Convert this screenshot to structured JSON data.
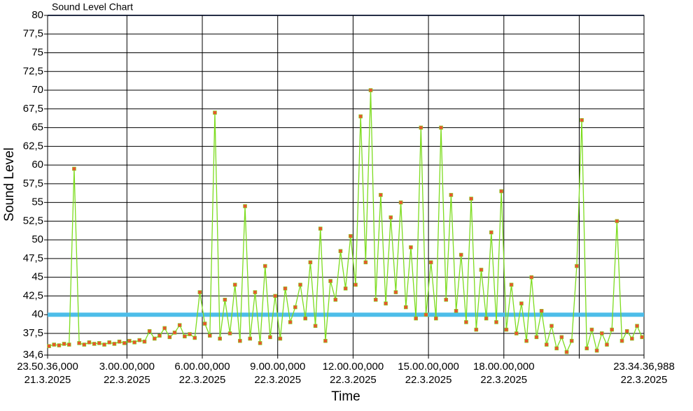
{
  "chart_data": {
    "type": "line",
    "title": "Sound Level Chart",
    "x_label": "Time",
    "y_label": "Sound Level",
    "x": [
      23.9,
      24.1,
      24.3,
      24.5,
      24.7,
      24.9,
      25.1,
      25.3,
      25.5,
      25.7,
      25.9,
      26.1,
      26.3,
      26.5,
      26.7,
      26.9,
      27.1,
      27.3,
      27.5,
      27.7,
      27.9,
      28.1,
      28.3,
      28.5,
      28.7,
      28.9,
      29.1,
      29.3,
      29.5,
      29.7,
      29.9,
      30.1,
      30.3,
      30.5,
      30.7,
      30.9,
      31.1,
      31.3,
      31.5,
      31.7,
      31.9,
      32.1,
      32.3,
      32.5,
      32.7,
      32.9,
      33.1,
      33.3,
      33.5,
      33.7,
      33.9,
      34.1,
      34.3,
      34.5,
      34.7,
      34.9,
      35.1,
      35.3,
      35.5,
      35.7,
      35.9,
      36.1,
      36.3,
      36.5,
      36.7,
      36.9,
      37.1,
      37.3,
      37.5,
      37.7,
      37.9,
      38.1,
      38.3,
      38.5,
      38.7,
      38.9,
      39.1,
      39.3,
      39.5,
      39.7,
      39.9,
      40.1,
      40.3,
      40.5,
      40.7,
      40.9,
      41.1,
      41.3,
      41.5,
      41.7,
      41.9,
      42.1,
      42.3,
      42.5,
      42.7,
      42.9,
      43.1,
      43.3,
      43.5,
      43.7,
      43.9,
      44.1,
      44.3,
      44.5,
      44.7,
      44.9,
      45.1,
      45.3,
      45.5,
      45.7,
      45.9,
      46.1,
      46.3,
      46.5,
      46.7,
      46.9,
      47.1,
      47.3,
      47.5
    ],
    "series": [
      {
        "color": "#7ddc1f",
        "marker_color": "#e8562e",
        "values": [
          35.8,
          36.0,
          35.9,
          36.1,
          36.0,
          59.5,
          36.2,
          36.0,
          36.3,
          36.1,
          36.2,
          36.0,
          36.3,
          36.1,
          36.4,
          36.2,
          36.5,
          36.3,
          36.6,
          36.4,
          37.8,
          36.8,
          37.2,
          38.2,
          37.0,
          37.6,
          38.6,
          37.1,
          37.4,
          36.9,
          43.0,
          38.8,
          37.2,
          67.0,
          36.8,
          42.0,
          37.5,
          44.0,
          36.5,
          54.5,
          36.8,
          43.0,
          36.2,
          46.5,
          37.0,
          42.5,
          36.8,
          43.5,
          39.0,
          41.0,
          44.0,
          39.5,
          47.0,
          38.5,
          51.5,
          36.5,
          44.5,
          42.0,
          48.5,
          43.5,
          50.5,
          44.0,
          66.5,
          47.0,
          70.0,
          42.0,
          56.0,
          41.5,
          53.0,
          43.0,
          55.0,
          41.0,
          49.0,
          39.5,
          65.0,
          40.0,
          47.0,
          39.5,
          65.0,
          42.0,
          56.0,
          40.5,
          48.0,
          39.0,
          55.5,
          38.0,
          46.0,
          39.5,
          51.0,
          39.0,
          56.5,
          38.0,
          44.0,
          37.5,
          41.5,
          36.5,
          45.0,
          37.0,
          40.5,
          36.0,
          38.5,
          35.5,
          37.0,
          35.0,
          36.5,
          46.5,
          66.0,
          35.5,
          38.0,
          35.2,
          37.5,
          36.0,
          38.0,
          52.5,
          36.5,
          37.8,
          36.8,
          38.5,
          37.0
        ]
      }
    ],
    "threshold": {
      "value": 40,
      "color": "#4dbde9"
    },
    "xlim": [
      23.84333,
      47.57694
    ],
    "xticks": [
      {
        "value": 23.84333,
        "label": [
          "23.50.36,000",
          "21.3.2025"
        ]
      },
      {
        "value": 27,
        "label": [
          "3.00.00,000",
          "22.3.2025"
        ]
      },
      {
        "value": 30,
        "label": [
          "6.00.00,000",
          "22.3.2025"
        ]
      },
      {
        "value": 33,
        "label": [
          "9.00.00,000",
          "22.3.2025"
        ]
      },
      {
        "value": 36,
        "label": [
          "12.00.00,000",
          "22.3.2025"
        ]
      },
      {
        "value": 39,
        "label": [
          "15.00.00,000",
          "22.3.2025"
        ]
      },
      {
        "value": 42,
        "label": [
          "18.00.00,000",
          "22.3.2025"
        ]
      },
      {
        "value": 45,
        "label": null
      },
      {
        "value": 47.57694,
        "label": [
          "23.34.36,988",
          "22.3.2025"
        ]
      }
    ],
    "ylim": [
      34.6,
      80
    ],
    "yticks": [
      {
        "value": 34.6,
        "label": "34,6"
      },
      {
        "value": 37.5,
        "label": "37,5"
      },
      40,
      {
        "value": 42.5,
        "label": "42,5"
      },
      45,
      {
        "value": 47.5,
        "label": "47,5"
      },
      50,
      {
        "value": 52.5,
        "label": "52,5"
      },
      55,
      {
        "value": 57.5,
        "label": "57,5"
      },
      60,
      {
        "value": 62.5,
        "label": "62,5"
      },
      65,
      {
        "value": 67.5,
        "label": "67,5"
      },
      70,
      {
        "value": 72.5,
        "label": "72,5"
      },
      75,
      {
        "value": 77.5,
        "label": "77,5"
      },
      80
    ],
    "grid": true
  }
}
